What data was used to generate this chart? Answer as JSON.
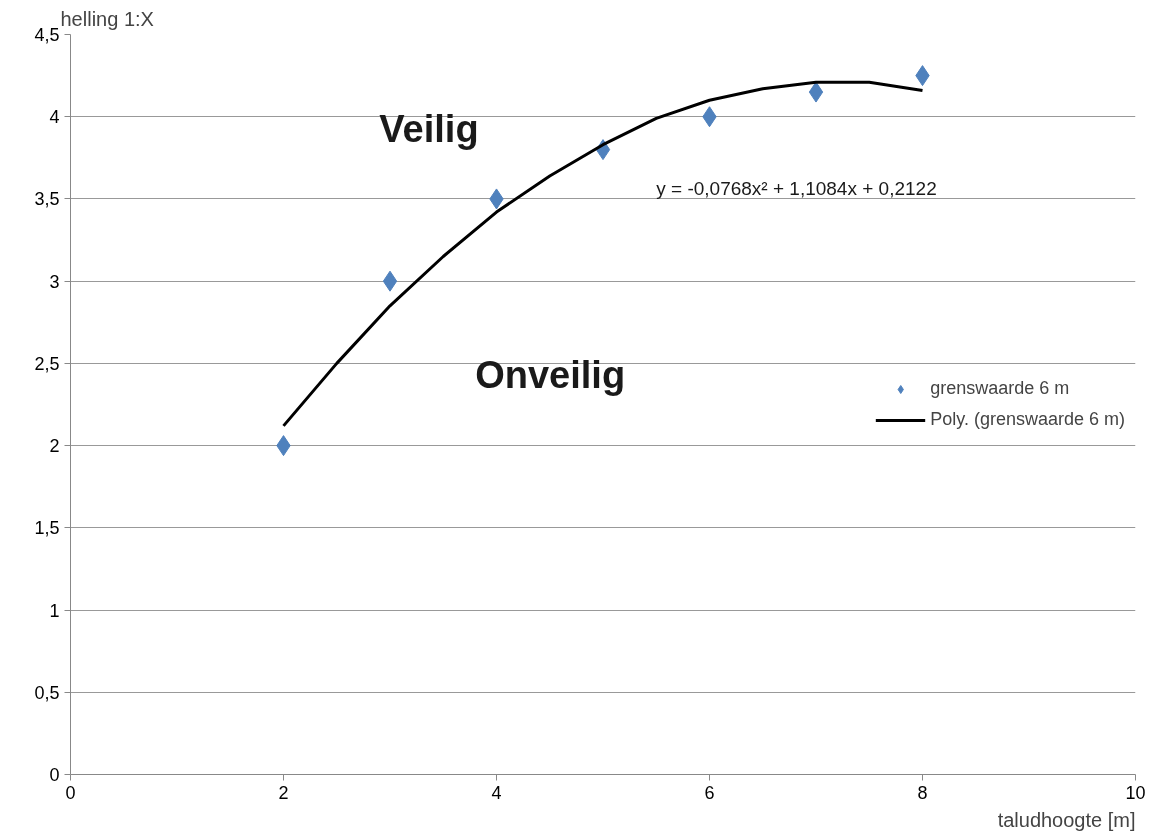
{
  "chart_data": {
    "type": "scatter",
    "xlabel": "taludhoogte [m]",
    "ylabel": "helling 1:X",
    "xlim": [
      0,
      10
    ],
    "xticks": [
      0,
      2,
      4,
      6,
      8,
      10
    ],
    "ylim": [
      0,
      4.5
    ],
    "yticks": [
      0,
      {
        "value": 0.5,
        "label": "0,5"
      },
      1,
      {
        "value": 1.5,
        "label": "1,5"
      },
      2,
      {
        "value": 2.5,
        "label": "2,5"
      },
      3,
      {
        "value": 3.5,
        "label": "3,5"
      },
      4,
      {
        "value": 4.5,
        "label": "4,5"
      }
    ],
    "grid": "y",
    "legend": "right",
    "series": [
      {
        "name": "grenswaarde 6 m",
        "marker": "diamond",
        "color": "#4f81bd",
        "x": [
          2,
          3,
          4,
          5,
          6,
          7,
          8
        ],
        "values": [
          2,
          3,
          3.5,
          3.8,
          4,
          4.15,
          4.25
        ]
      },
      {
        "name": "Poly. (grenswaarde 6 m)",
        "type": "line",
        "color": "#000000",
        "x": [
          2,
          2.5,
          3,
          3.5,
          4,
          4.5,
          5,
          5.5,
          6,
          6.5,
          7,
          7.5,
          8
        ],
        "values": [
          2.12,
          2.5,
          2.85,
          3.15,
          3.42,
          3.64,
          3.83,
          3.99,
          4.1,
          4.17,
          4.21,
          4.21,
          4.16
        ]
      }
    ],
    "annotations": [
      "Veilig",
      "Onveilig",
      "y = -0,0768x² + 1,1084x + 0,2122"
    ]
  }
}
